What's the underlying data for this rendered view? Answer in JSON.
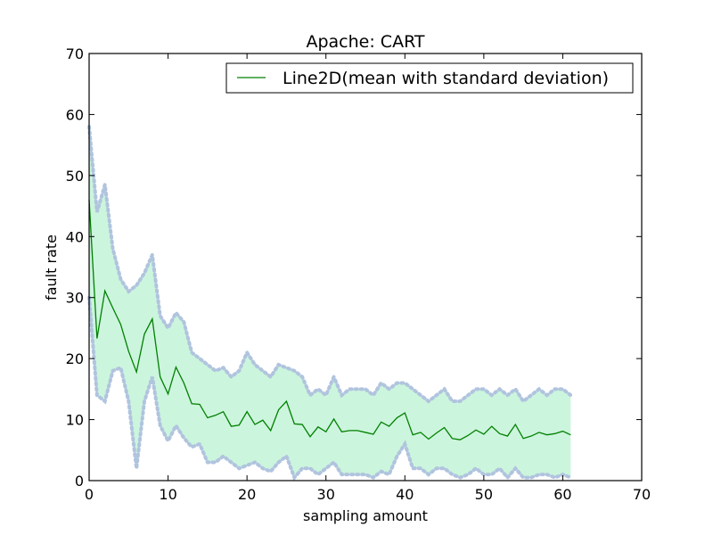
{
  "chart_data": {
    "type": "line",
    "title": "Apache: CART",
    "xlabel": "sampling amount",
    "ylabel": "fault rate",
    "xlim": [
      0,
      70
    ],
    "ylim": [
      0,
      70
    ],
    "xticks": [
      "0",
      "10",
      "20",
      "30",
      "40",
      "50",
      "60",
      "70"
    ],
    "yticks": [
      "0",
      "10",
      "20",
      "30",
      "40",
      "50",
      "60",
      "70"
    ],
    "grid": false,
    "legend": {
      "position": "top-right",
      "entries": [
        "Line2D(mean with standard deviation)"
      ]
    },
    "colors": {
      "mean_line": "#008000",
      "band_fill": "#ccf5dd",
      "band_edge": "#b0c4de"
    },
    "series": [
      {
        "name": "Line2D(mean with standard deviation)",
        "x": [
          0,
          1,
          2,
          3,
          4,
          5,
          6,
          7,
          8,
          9,
          10,
          11,
          12,
          13,
          14,
          15,
          16,
          17,
          18,
          19,
          20,
          21,
          22,
          23,
          24,
          25,
          26,
          27,
          28,
          29,
          30,
          31,
          32,
          33,
          34,
          35,
          36,
          37,
          38,
          39,
          40,
          41,
          42,
          43,
          44,
          45,
          46,
          47,
          48,
          49,
          50,
          51,
          52,
          53,
          54,
          55,
          56,
          57,
          58,
          59,
          60,
          61
        ],
        "mean": [
          46,
          23.3,
          31.1,
          28.3,
          25.6,
          21.2,
          17.8,
          24,
          26.5,
          17,
          14.2,
          18.6,
          16,
          12.6,
          12.5,
          10.3,
          10.7,
          11.3,
          8.9,
          9.1,
          11.3,
          9.2,
          9.9,
          8.2,
          11.6,
          13,
          9.3,
          9.2,
          7.2,
          8.8,
          8,
          10.1,
          8,
          8.2,
          8.2,
          7.9,
          7.6,
          9.6,
          8.9,
          10.3,
          11.1,
          7.5,
          7.9,
          6.8,
          7.8,
          8.7,
          6.9,
          6.7,
          7.4,
          8.3,
          7.6,
          8.9,
          7.7,
          7.3,
          9.2,
          6.9,
          7.3,
          7.9,
          7.5,
          7.7,
          8.1,
          7.5
        ],
        "upper": [
          58,
          44,
          48.5,
          38,
          33,
          31,
          32,
          34,
          37,
          27,
          25,
          27.5,
          26,
          21,
          20,
          19,
          18,
          18.5,
          17,
          18,
          21,
          19,
          18,
          17,
          19,
          18.5,
          18,
          17,
          14,
          15,
          14,
          17,
          14,
          15,
          15,
          15,
          14,
          16,
          15,
          16,
          16,
          15,
          14,
          13,
          14,
          15,
          13,
          13,
          14,
          15,
          15,
          14,
          15,
          14,
          15,
          13,
          14,
          15,
          14,
          15,
          15,
          14
        ],
        "lower": [
          30,
          14,
          13,
          18,
          18.5,
          13,
          2,
          13,
          17,
          9,
          6.5,
          9,
          7,
          5.5,
          6,
          3,
          3,
          4,
          3,
          2,
          2.5,
          3,
          2,
          1.5,
          3,
          4,
          0.5,
          2,
          2,
          1,
          2,
          3,
          1,
          1,
          1,
          1,
          0.5,
          1.5,
          1,
          4,
          6,
          2,
          2,
          1,
          2,
          2,
          1,
          0.5,
          1,
          2,
          1,
          1,
          2,
          0.5,
          2,
          0.5,
          0.5,
          1,
          1,
          0.5,
          1,
          0.5
        ]
      }
    ]
  }
}
